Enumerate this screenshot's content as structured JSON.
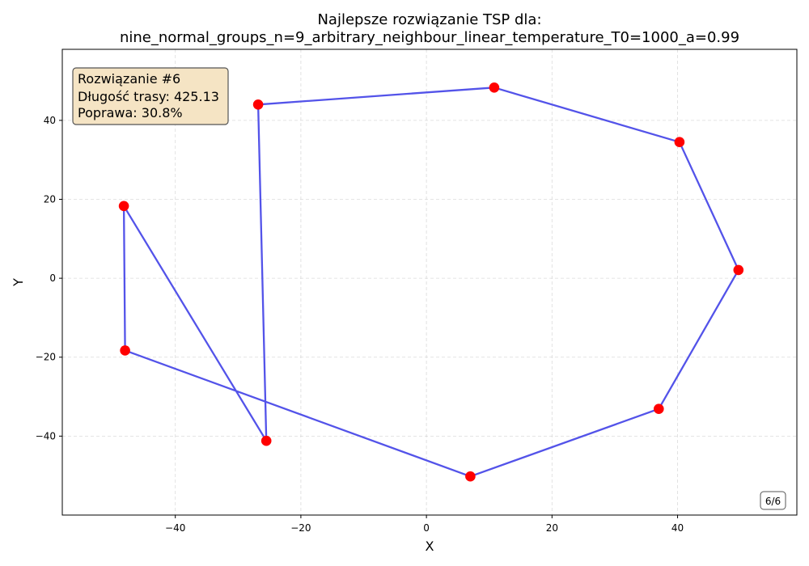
{
  "chart_data": {
    "type": "line",
    "title_line1": "Najlepsze rozwiązanie TSP dla:",
    "title_line2": "nine_normal_groups_n=9_arbitrary_neighbour_linear_temperature_T0=1000_a=0.99",
    "xlabel": "X",
    "ylabel": "Y",
    "xlim": [
      -58,
      59
    ],
    "ylim": [
      -60,
      58
    ],
    "xticks": [
      -40,
      -20,
      0,
      20,
      40
    ],
    "yticks": [
      -40,
      -20,
      0,
      20,
      40
    ],
    "xtick_labels": [
      "−40",
      "−20",
      "0",
      "20",
      "40"
    ],
    "ytick_labels": [
      "−40",
      "−20",
      "0",
      "20",
      "40"
    ],
    "grid": true,
    "route": {
      "x": [
        -48.2,
        -48.0,
        7.0,
        37.0,
        49.7,
        40.3,
        10.8,
        -26.8,
        -25.5,
        -48.2
      ],
      "y": [
        18.3,
        -18.3,
        -50.2,
        -33.1,
        2.1,
        34.5,
        48.3,
        44.0,
        -41.2,
        18.3
      ],
      "closed": true
    },
    "line_color": "#4a4ae8",
    "point_color": "#ff0000",
    "info_box": {
      "line1": "Rozwiązanie #6",
      "line2": "Długość trasy: 425.13",
      "line3": "Poprawa: 30.8%",
      "background": "#f5e4c4",
      "border": "#555555"
    },
    "counter": "6/6"
  }
}
